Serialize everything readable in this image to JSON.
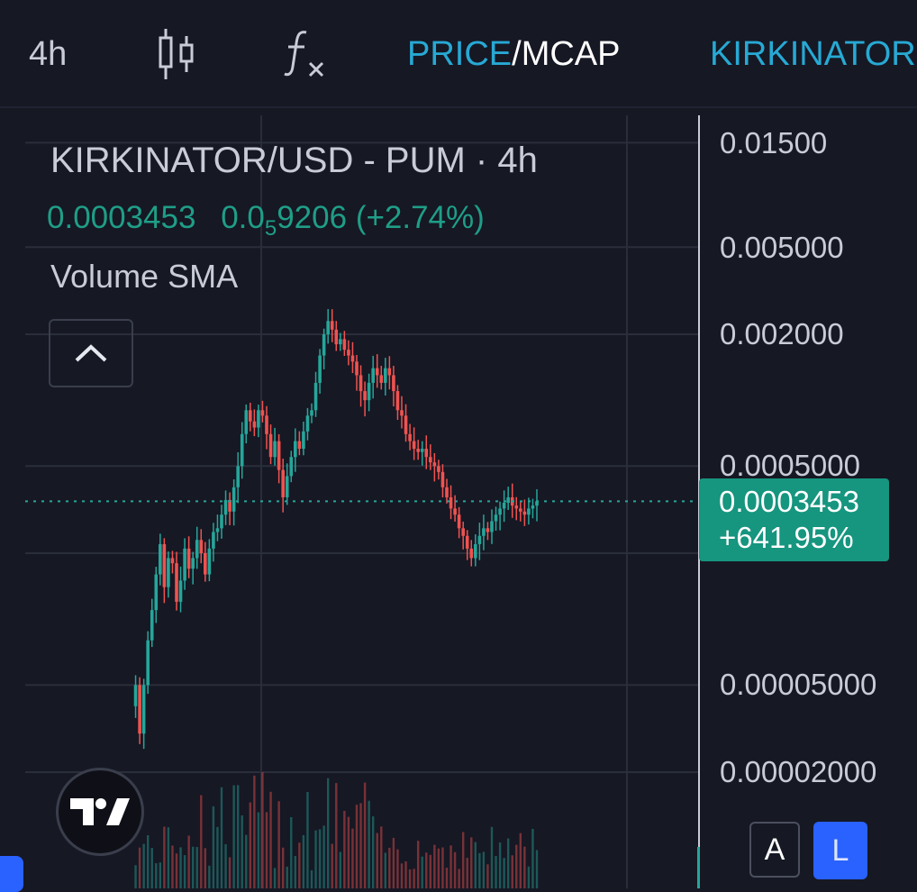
{
  "toolbar": {
    "interval": "4h",
    "candle_icon": "candlestick-icon",
    "indicators_icon": "fx-indicators-icon",
    "price_label": "PRICE",
    "slash": "/",
    "mcap_label": "MCAP",
    "symbol": "KIRKINATOR"
  },
  "legend": {
    "title": "KIRKINATOR/USD - PUM · 4h",
    "price": "0.0003453",
    "change_prefix": "0.0",
    "change_subscript": "5",
    "change_rest": "9206",
    "change_percent": "(+2.74%)",
    "study": "Volume SMA"
  },
  "price_axis": {
    "labels": [
      "0.01500",
      "0.005000",
      "0.002000",
      "0.0005000",
      "0.00005000",
      "0.00002000"
    ]
  },
  "last_price": {
    "value": "0.0003453",
    "change": "+641.95%"
  },
  "scale_buttons": {
    "auto": "A",
    "log": "L"
  },
  "colors": {
    "up": "#26a69a",
    "down": "#ef5350",
    "accent": "#27a9d4",
    "price_tag": "#16957f",
    "log_active": "#2962ff"
  },
  "chart_data": {
    "type": "candlestick",
    "symbol": "KIRKINATOR/USD",
    "interval": "4h",
    "y_scale": "log",
    "ylim": [
      1.5e-05,
      0.018
    ],
    "last_price": 0.0003453,
    "close_path": [
      4e-05,
      5e-05,
      3e-05,
      5e-05,
      8e-05,
      0.00011,
      0.00016,
      0.00022,
      0.00014,
      0.00019,
      0.00018,
      0.00012,
      0.00015,
      0.00021,
      0.00017,
      0.00019,
      0.00023,
      0.0002,
      0.00016,
      0.00021,
      0.00025,
      0.00026,
      0.0003,
      0.00035,
      0.00031,
      0.0004,
      0.0005,
      0.0007,
      0.0009,
      0.0008,
      0.00075,
      0.0009,
      0.00085,
      0.0007,
      0.00055,
      0.00065,
      0.00048,
      0.00036,
      0.00045,
      0.00055,
      0.00065,
      0.0006,
      0.00072,
      0.00085,
      0.0009,
      0.0012,
      0.0016,
      0.002,
      0.0023,
      0.0021,
      0.0018,
      0.0019,
      0.0017,
      0.0016,
      0.0015,
      0.0013,
      0.0011,
      0.001,
      0.0012,
      0.0014,
      0.0013,
      0.0012,
      0.0014,
      0.0013,
      0.0011,
      0.0009,
      0.00085,
      0.0007,
      0.00065,
      0.0006,
      0.00058,
      0.0006,
      0.00055,
      0.00052,
      0.0005,
      0.00047,
      0.0004,
      0.00036,
      0.00032,
      0.0003,
      0.00026,
      0.00024,
      0.00021,
      0.00019,
      0.00022,
      0.00024,
      0.00026,
      0.00025,
      0.00028,
      0.0003,
      0.00032,
      0.00034,
      0.00036,
      0.00033,
      0.00032,
      0.00031,
      0.0003,
      0.00032,
      0.00033,
      0.0003453
    ]
  }
}
